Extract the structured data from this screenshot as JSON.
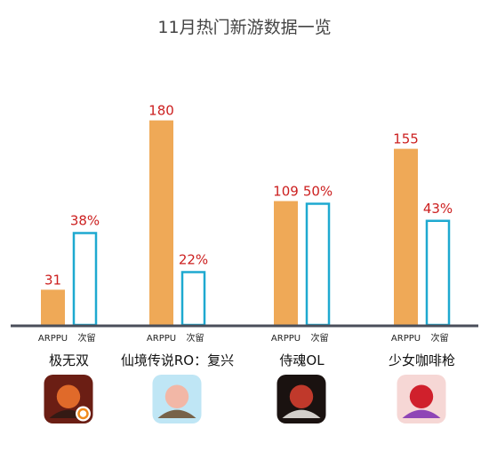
{
  "colors": {
    "arppu_bar": "#efa957",
    "retention_bar_stroke": "#1ea9d0",
    "baseline": "#4a4e5a",
    "value_label": "#cc1f1f"
  },
  "chart_data": {
    "type": "bar",
    "title": "11月热门新游数据一览",
    "series_labels": [
      "ARPPU",
      "次留"
    ],
    "games": [
      {
        "name": "极无双",
        "arppu": 31,
        "arppu_label": "31",
        "retention": 38,
        "retention_label": "38%",
        "icon": "jiwushuang-game-icon"
      },
      {
        "name": "仙境传说RO：复兴",
        "arppu": 180,
        "arppu_label": "180",
        "retention": 22,
        "retention_label": "22%",
        "icon": "ro-revival-game-icon"
      },
      {
        "name": "侍魂OL",
        "arppu": 109,
        "arppu_label": "109",
        "retention": 50,
        "retention_label": "50%",
        "icon": "samurai-spirits-game-icon"
      },
      {
        "name": "少女咖啡枪",
        "arppu": 155,
        "arppu_label": "155",
        "retention": 43,
        "retention_label": "43%",
        "icon": "girls-cafe-gun-game-icon"
      }
    ],
    "grid": false,
    "legend": "none"
  }
}
